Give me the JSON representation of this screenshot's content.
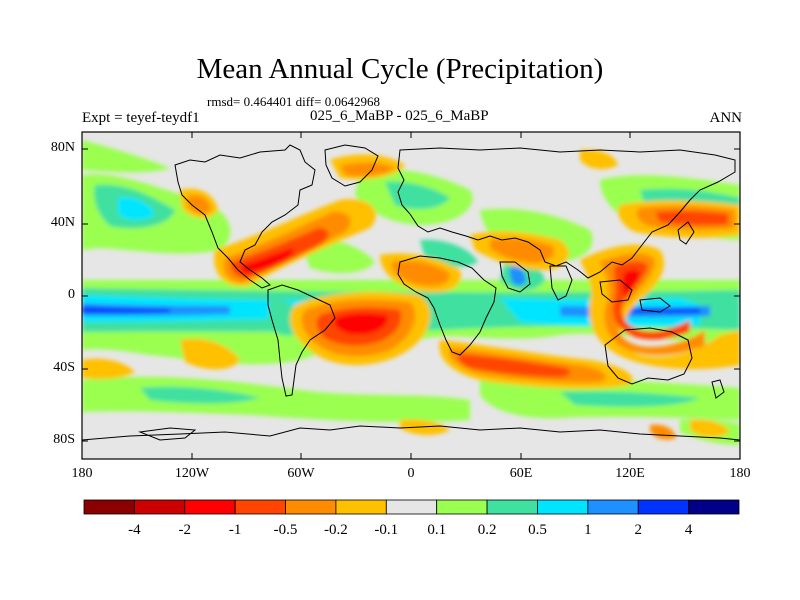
{
  "title": "Mean Annual Cycle (Precipitation)",
  "stats": "rmsd= 0.464401 diff= 0.0642968",
  "experiment": "Expt = teyef-teydf1",
  "period": "025_6_MaBP - 025_6_MaBP",
  "season": "ANN",
  "axes": {
    "lat_labels": [
      "80N",
      "40N",
      "0",
      "40S",
      "80S"
    ],
    "lon_labels": [
      "180",
      "120W",
      "60W",
      "0",
      "60E",
      "120E",
      "180"
    ]
  },
  "colorbar": {
    "labels": [
      "-4",
      "-2",
      "-1",
      "-0.5",
      "-0.2",
      "-0.1",
      "0.1",
      "0.2",
      "0.5",
      "1",
      "2",
      "4"
    ],
    "colors": [
      "#8b0000",
      "#cc0000",
      "#ff0000",
      "#ff4500",
      "#ff8c00",
      "#ffc000",
      "#e6e6e6",
      "#9aff50",
      "#40e0a0",
      "#00e5ff",
      "#1e90ff",
      "#0033ff",
      "#000088"
    ]
  },
  "colors": {
    "background": "#e6e6e6",
    "coast": "#000000"
  }
}
